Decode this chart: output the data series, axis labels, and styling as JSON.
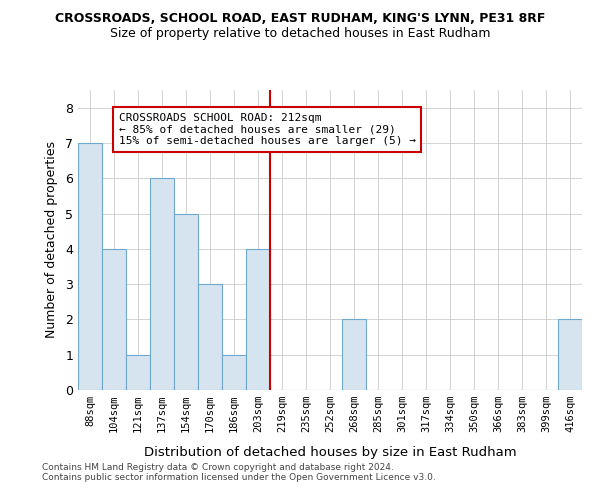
{
  "title_line1": "CROSSROADS, SCHOOL ROAD, EAST RUDHAM, KING'S LYNN, PE31 8RF",
  "title_line2": "Size of property relative to detached houses in East Rudham",
  "xlabel": "Distribution of detached houses by size in East Rudham",
  "ylabel": "Number of detached properties",
  "footer_line1": "Contains HM Land Registry data © Crown copyright and database right 2024.",
  "footer_line2": "Contains public sector information licensed under the Open Government Licence v3.0.",
  "bin_labels": [
    "88sqm",
    "104sqm",
    "121sqm",
    "137sqm",
    "154sqm",
    "170sqm",
    "186sqm",
    "203sqm",
    "219sqm",
    "235sqm",
    "252sqm",
    "268sqm",
    "285sqm",
    "301sqm",
    "317sqm",
    "334sqm",
    "350sqm",
    "366sqm",
    "383sqm",
    "399sqm",
    "416sqm"
  ],
  "bar_heights": [
    7,
    4,
    1,
    6,
    5,
    3,
    1,
    4,
    0,
    0,
    0,
    2,
    0,
    0,
    0,
    0,
    0,
    0,
    0,
    0,
    2
  ],
  "bar_color": "#d6e4f0",
  "bar_edge_color": "#6fa8cc",
  "property_line_x": 7.5,
  "property_line_color": "#cc0000",
  "annotation_text": "CROSSROADS SCHOOL ROAD: 212sqm\n← 85% of detached houses are smaller (29)\n15% of semi-detached houses are larger (5) →",
  "annotation_box_color": "white",
  "annotation_box_edge_color": "#cc0000",
  "ylim": [
    0,
    8.5
  ],
  "yticks": [
    0,
    1,
    2,
    3,
    4,
    5,
    6,
    7,
    8
  ],
  "grid_color": "#cccccc",
  "background_color": "#ffffff"
}
